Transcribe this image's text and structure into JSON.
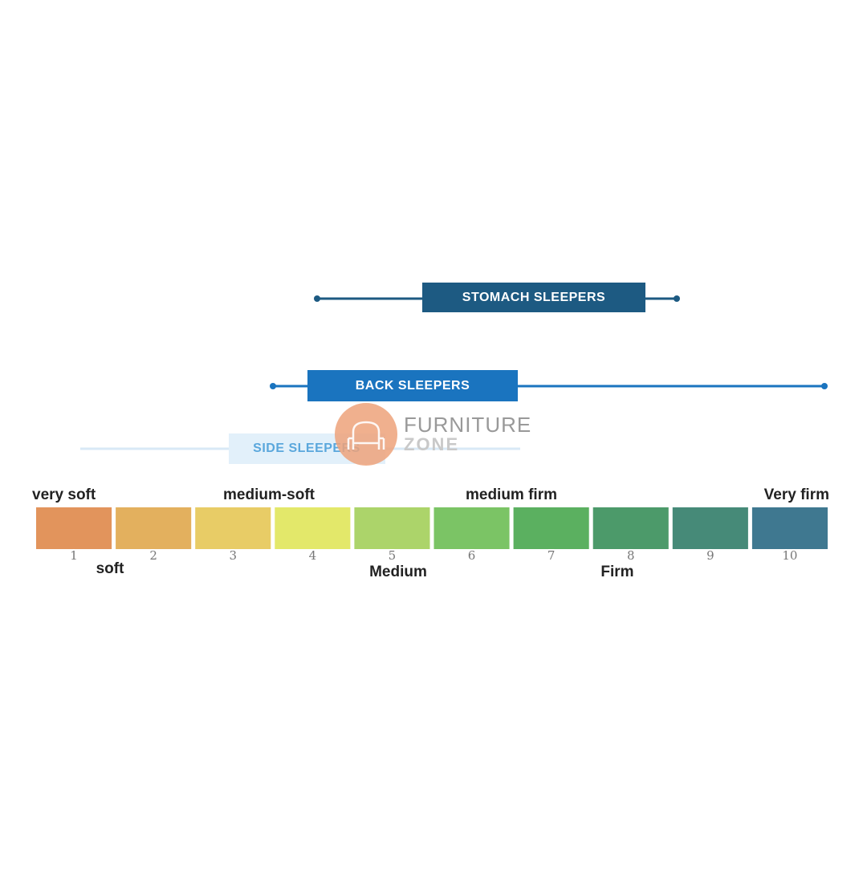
{
  "sleepers": [
    {
      "label": "STOMACH SLEEPERS"
    },
    {
      "label": "BACK SLEEPERS"
    },
    {
      "label": "SIDE SLEEPERS"
    }
  ],
  "scale": {
    "levels": [
      {
        "number": 1,
        "color": "#e2945c"
      },
      {
        "number": 2,
        "color": "#e3b05e"
      },
      {
        "number": 3,
        "color": "#e8cc66"
      },
      {
        "number": 4,
        "color": "#e3e86a"
      },
      {
        "number": 5,
        "color": "#acd46a"
      },
      {
        "number": 6,
        "color": "#7bc465"
      },
      {
        "number": 7,
        "color": "#5bb060"
      },
      {
        "number": 8,
        "color": "#4c9a6a"
      },
      {
        "number": 9,
        "color": "#468a78"
      },
      {
        "number": 10,
        "color": "#3f7890"
      }
    ],
    "top_labels": [
      "very soft",
      "medium-soft",
      "medium firm",
      "Very firm"
    ],
    "bottom_labels": [
      "soft",
      "Medium",
      "Firm"
    ]
  },
  "watermark": {
    "line1": "FURNITURE",
    "line2": "ZONE"
  }
}
